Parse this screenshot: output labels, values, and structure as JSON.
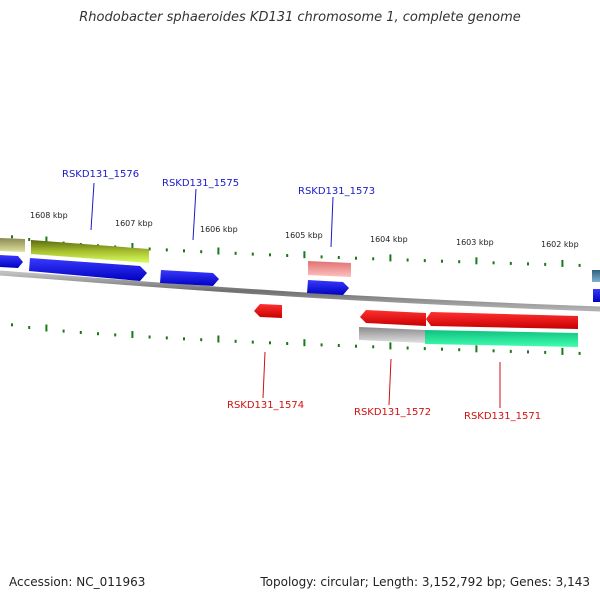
{
  "title": "Rhodobacter sphaeroides KD131 chromosome 1, complete genome",
  "footer": {
    "accession": "Accession: NC_011963",
    "summary": "Topology: circular; Length: 3,152,792 bp; Genes: 3,143"
  },
  "ticks": [
    "1608 kbp",
    "1607 kbp",
    "1606 kbp",
    "1605 kbp",
    "1604 kbp",
    "1603 kbp",
    "1602 kbp"
  ],
  "gene_labels": {
    "forward": [
      "RSKD131_1576",
      "RSKD131_1575",
      "RSKD131_1573"
    ],
    "reverse": [
      "RSKD131_1574",
      "RSKD131_1572",
      "RSKD131_1571"
    ]
  },
  "colors": {
    "forward_label": "#1a1ac8",
    "reverse_label": "#d01010",
    "forward_gene": "#1010e0",
    "reverse_gene": "#e8101a",
    "backbone": "#888888",
    "tick": "#1a7a1a"
  }
}
